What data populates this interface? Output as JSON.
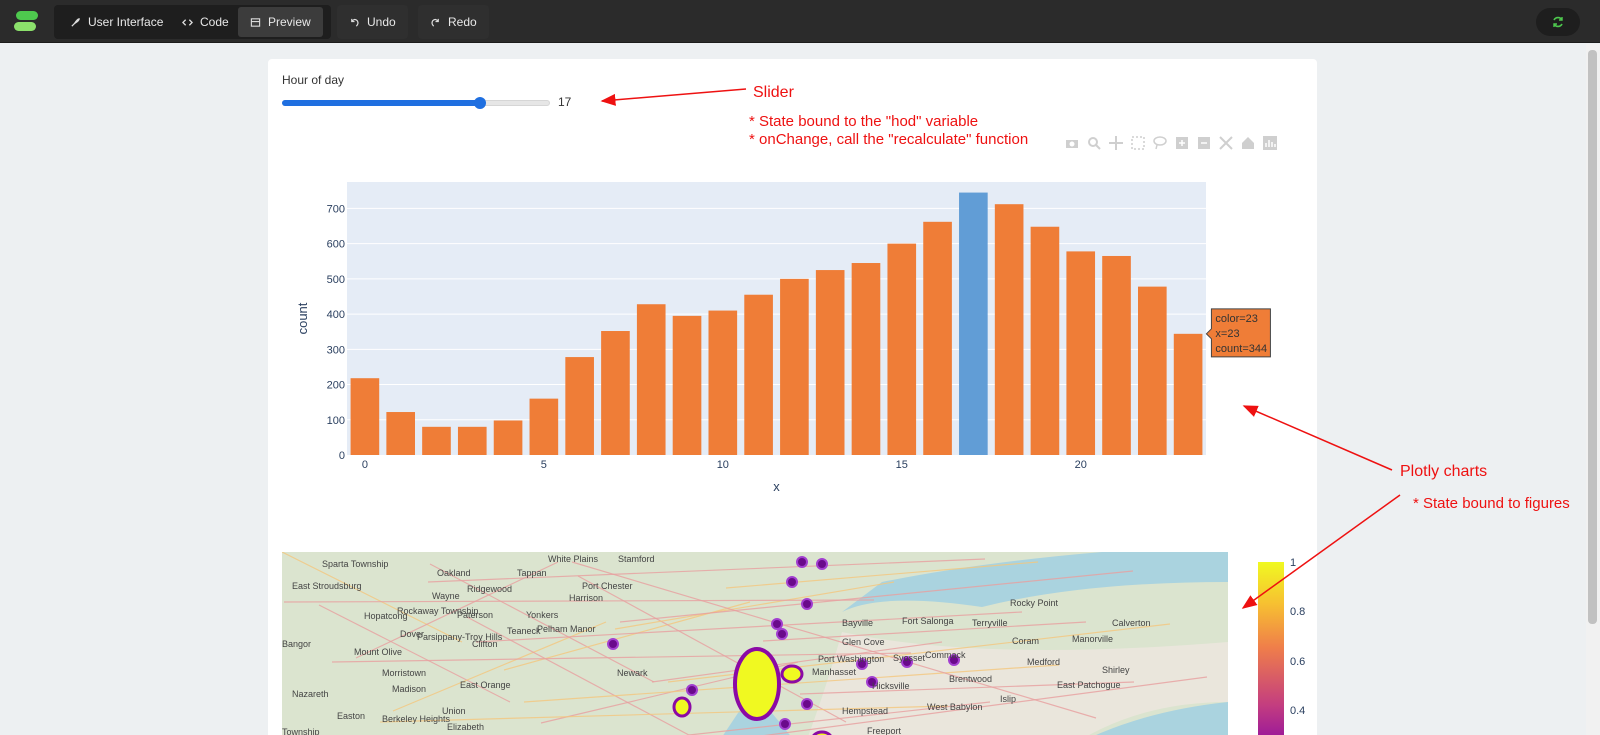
{
  "toolbar": {
    "tabs": [
      {
        "label": "User Interface",
        "icon": "brush-icon"
      },
      {
        "label": "Code",
        "icon": "code-icon"
      },
      {
        "label": "Preview",
        "icon": "preview-icon"
      }
    ],
    "undo_label": "Undo",
    "redo_label": "Redo",
    "active_tab": "Preview"
  },
  "slider": {
    "label": "Hour of day",
    "value": 17,
    "min": 0,
    "max": 23
  },
  "annotations": {
    "slider_title": "Slider",
    "slider_note_1": "* State bound to the \"hod\" variable",
    "slider_note_2": "* onChange, call the \"recalculate\" function",
    "charts_title": "Plotly charts",
    "charts_note": "* State bound to figures"
  },
  "chart_data": {
    "type": "bar",
    "x": [
      0,
      1,
      2,
      3,
      4,
      5,
      6,
      7,
      8,
      9,
      10,
      11,
      12,
      13,
      14,
      15,
      16,
      17,
      18,
      19,
      20,
      21,
      22,
      23
    ],
    "values": [
      218,
      122,
      80,
      80,
      98,
      160,
      278,
      352,
      428,
      395,
      410,
      455,
      500,
      525,
      545,
      600,
      662,
      745,
      712,
      648,
      578,
      565,
      478,
      344
    ],
    "highlight_x": 17,
    "xlabel": "x",
    "ylabel": "count",
    "ylim": [
      0,
      775
    ],
    "yticks": [
      0,
      100,
      200,
      300,
      400,
      500,
      600,
      700
    ],
    "xticks": [
      0,
      5,
      10,
      15,
      20
    ],
    "bar_color": "#ef7d37",
    "highlight_color": "#619dd6",
    "plot_bg": "#e5ecf6",
    "hover": {
      "line1": "color=23",
      "line2": "x=23",
      "line3": "count=344"
    }
  },
  "map": {
    "places": [
      "Sparta Township",
      "Oakland",
      "Tappan",
      "White Plains",
      "Stamford",
      "East Stroudsburg",
      "Wayne",
      "Ridgewood",
      "Port Chester",
      "Harrison",
      "Hopatcong",
      "Rockaway Township",
      "Paterson",
      "Yonkers",
      "Rocky Point",
      "Dover",
      "Parsippany-Troy Hills",
      "Teaneck",
      "Pelham Manor",
      "Bayville",
      "Fort Salonga",
      "Terryville",
      "Calverton",
      "Bangor",
      "Mount Olive",
      "Clifton",
      "Glen Cove",
      "Coram",
      "Manorville",
      "Morristown",
      "Newark",
      "Port Washington",
      "Syosset",
      "Commack",
      "Medford",
      "Madison",
      "East Orange",
      "Manhasset",
      "Hicksville",
      "Brentwood",
      "East Patchogue",
      "Shirley",
      "Nazareth",
      "Union",
      "Hempstead",
      "West Babylon",
      "Islip",
      "Easton",
      "Berkeley Heights",
      "Elizabeth",
      "Freeport",
      "Township"
    ],
    "colorbar_ticks": [
      "1",
      "0.8",
      "0.6",
      "0.4"
    ]
  },
  "colors": {
    "annotation": "#ee1111",
    "topbar": "#2b2b2b",
    "accent": "#1f6fe0"
  }
}
